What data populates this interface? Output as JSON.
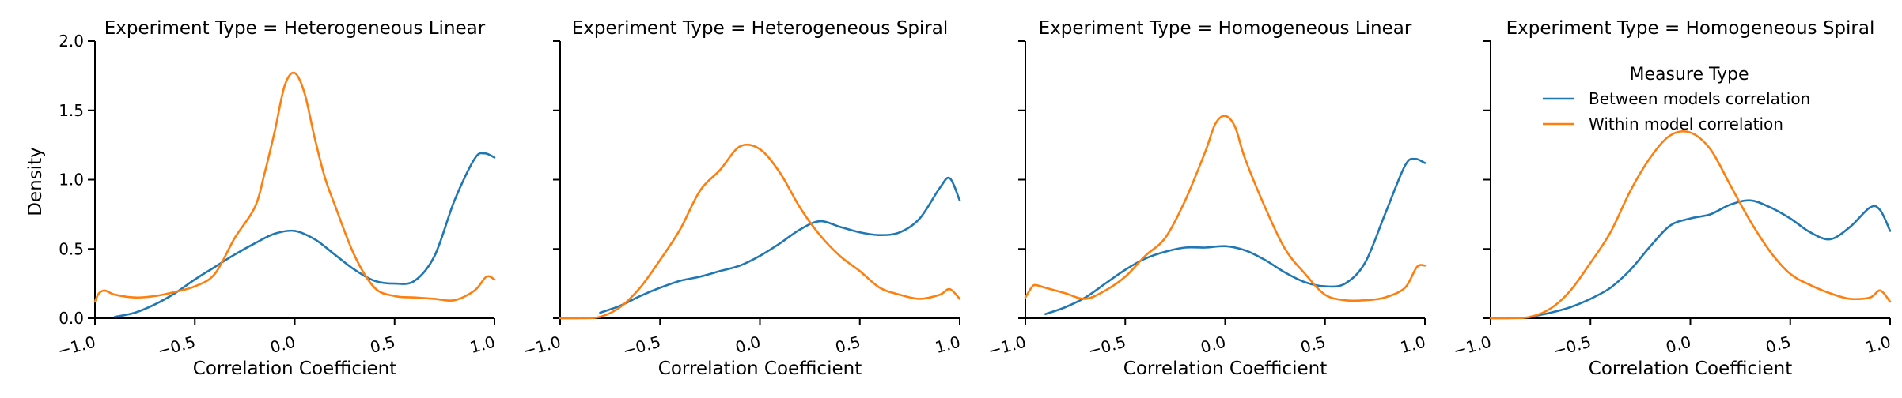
{
  "colors": {
    "between": "#1f77b4",
    "within": "#ff7f0e"
  },
  "legend": {
    "title": "Measure Type",
    "entries": [
      "Between models correlation",
      "Within model correlation"
    ]
  },
  "chart_data": {
    "type": "line",
    "xlabel": "Correlation Coefficient",
    "ylabel": "Density",
    "xlim": [
      -1.0,
      1.0
    ],
    "ylim": [
      0.0,
      2.0
    ],
    "x_ticks": [
      "−1.0",
      "−0.5",
      "0.0",
      "0.5",
      "1.0"
    ],
    "y_ticks": [
      "0.0",
      "0.5",
      "1.0",
      "1.5",
      "2.0"
    ],
    "legend_position": "top-right",
    "panels": [
      {
        "title": "Experiment Type = Heterogeneous Linear",
        "series": [
          {
            "name": "Between models correlation",
            "color_key": "between",
            "points": [
              [
                -0.9,
                0.01
              ],
              [
                -0.8,
                0.04
              ],
              [
                -0.7,
                0.1
              ],
              [
                -0.6,
                0.18
              ],
              [
                -0.5,
                0.28
              ],
              [
                -0.4,
                0.37
              ],
              [
                -0.3,
                0.46
              ],
              [
                -0.2,
                0.54
              ],
              [
                -0.1,
                0.61
              ],
              [
                0.0,
                0.63
              ],
              [
                0.1,
                0.57
              ],
              [
                0.2,
                0.46
              ],
              [
                0.3,
                0.35
              ],
              [
                0.4,
                0.27
              ],
              [
                0.5,
                0.25
              ],
              [
                0.6,
                0.27
              ],
              [
                0.7,
                0.45
              ],
              [
                0.8,
                0.85
              ],
              [
                0.9,
                1.15
              ],
              [
                0.95,
                1.19
              ],
              [
                1.0,
                1.16
              ]
            ]
          },
          {
            "name": "Within model correlation",
            "color_key": "within",
            "points": [
              [
                -1.0,
                0.12
              ],
              [
                -0.98,
                0.18
              ],
              [
                -0.95,
                0.2
              ],
              [
                -0.9,
                0.17
              ],
              [
                -0.8,
                0.15
              ],
              [
                -0.7,
                0.16
              ],
              [
                -0.6,
                0.19
              ],
              [
                -0.5,
                0.23
              ],
              [
                -0.4,
                0.32
              ],
              [
                -0.3,
                0.58
              ],
              [
                -0.2,
                0.8
              ],
              [
                -0.15,
                1.05
              ],
              [
                -0.1,
                1.35
              ],
              [
                -0.05,
                1.68
              ],
              [
                0.0,
                1.77
              ],
              [
                0.05,
                1.62
              ],
              [
                0.1,
                1.3
              ],
              [
                0.15,
                1.02
              ],
              [
                0.2,
                0.82
              ],
              [
                0.3,
                0.45
              ],
              [
                0.4,
                0.22
              ],
              [
                0.5,
                0.16
              ],
              [
                0.6,
                0.15
              ],
              [
                0.7,
                0.14
              ],
              [
                0.8,
                0.13
              ],
              [
                0.9,
                0.2
              ],
              [
                0.96,
                0.3
              ],
              [
                1.0,
                0.28
              ]
            ]
          }
        ]
      },
      {
        "title": "Experiment Type = Heterogeneous Spiral",
        "series": [
          {
            "name": "Between models correlation",
            "color_key": "between",
            "points": [
              [
                -0.8,
                0.04
              ],
              [
                -0.7,
                0.09
              ],
              [
                -0.6,
                0.16
              ],
              [
                -0.5,
                0.22
              ],
              [
                -0.4,
                0.27
              ],
              [
                -0.3,
                0.3
              ],
              [
                -0.2,
                0.34
              ],
              [
                -0.1,
                0.38
              ],
              [
                0.0,
                0.45
              ],
              [
                0.1,
                0.54
              ],
              [
                0.2,
                0.64
              ],
              [
                0.3,
                0.7
              ],
              [
                0.4,
                0.66
              ],
              [
                0.5,
                0.62
              ],
              [
                0.6,
                0.6
              ],
              [
                0.7,
                0.62
              ],
              [
                0.8,
                0.72
              ],
              [
                0.9,
                0.94
              ],
              [
                0.95,
                1.01
              ],
              [
                1.0,
                0.85
              ]
            ]
          },
          {
            "name": "Within model correlation",
            "color_key": "within",
            "points": [
              [
                -1.0,
                0.0
              ],
              [
                -0.9,
                0.0
              ],
              [
                -0.8,
                0.01
              ],
              [
                -0.7,
                0.08
              ],
              [
                -0.6,
                0.22
              ],
              [
                -0.5,
                0.42
              ],
              [
                -0.4,
                0.64
              ],
              [
                -0.3,
                0.92
              ],
              [
                -0.2,
                1.07
              ],
              [
                -0.1,
                1.24
              ],
              [
                0.0,
                1.22
              ],
              [
                0.1,
                1.05
              ],
              [
                0.2,
                0.8
              ],
              [
                0.3,
                0.6
              ],
              [
                0.4,
                0.45
              ],
              [
                0.5,
                0.34
              ],
              [
                0.6,
                0.22
              ],
              [
                0.7,
                0.17
              ],
              [
                0.8,
                0.14
              ],
              [
                0.9,
                0.17
              ],
              [
                0.95,
                0.21
              ],
              [
                1.0,
                0.14
              ]
            ]
          }
        ]
      },
      {
        "title": "Experiment Type = Homogeneous Linear",
        "series": [
          {
            "name": "Between models correlation",
            "color_key": "between",
            "points": [
              [
                -0.9,
                0.03
              ],
              [
                -0.8,
                0.08
              ],
              [
                -0.7,
                0.15
              ],
              [
                -0.6,
                0.25
              ],
              [
                -0.5,
                0.35
              ],
              [
                -0.4,
                0.43
              ],
              [
                -0.3,
                0.48
              ],
              [
                -0.2,
                0.51
              ],
              [
                -0.1,
                0.51
              ],
              [
                0.0,
                0.52
              ],
              [
                0.1,
                0.49
              ],
              [
                0.2,
                0.42
              ],
              [
                0.3,
                0.33
              ],
              [
                0.4,
                0.26
              ],
              [
                0.5,
                0.23
              ],
              [
                0.6,
                0.25
              ],
              [
                0.7,
                0.4
              ],
              [
                0.8,
                0.75
              ],
              [
                0.9,
                1.1
              ],
              [
                0.95,
                1.15
              ],
              [
                1.0,
                1.12
              ]
            ]
          },
          {
            "name": "Within model correlation",
            "color_key": "within",
            "points": [
              [
                -1.0,
                0.15
              ],
              [
                -0.97,
                0.22
              ],
              [
                -0.95,
                0.24
              ],
              [
                -0.9,
                0.22
              ],
              [
                -0.8,
                0.18
              ],
              [
                -0.7,
                0.14
              ],
              [
                -0.6,
                0.2
              ],
              [
                -0.5,
                0.3
              ],
              [
                -0.4,
                0.45
              ],
              [
                -0.3,
                0.58
              ],
              [
                -0.2,
                0.85
              ],
              [
                -0.1,
                1.2
              ],
              [
                -0.05,
                1.4
              ],
              [
                0.0,
                1.46
              ],
              [
                0.05,
                1.38
              ],
              [
                0.1,
                1.15
              ],
              [
                0.2,
                0.8
              ],
              [
                0.3,
                0.5
              ],
              [
                0.4,
                0.32
              ],
              [
                0.5,
                0.17
              ],
              [
                0.6,
                0.13
              ],
              [
                0.7,
                0.13
              ],
              [
                0.8,
                0.15
              ],
              [
                0.9,
                0.22
              ],
              [
                0.96,
                0.37
              ],
              [
                1.0,
                0.38
              ]
            ]
          }
        ]
      },
      {
        "title": "Experiment Type = Homogeneous Spiral",
        "series": [
          {
            "name": "Between models correlation",
            "color_key": "between",
            "points": [
              [
                -0.8,
                0.01
              ],
              [
                -0.7,
                0.04
              ],
              [
                -0.6,
                0.08
              ],
              [
                -0.5,
                0.14
              ],
              [
                -0.4,
                0.22
              ],
              [
                -0.3,
                0.35
              ],
              [
                -0.2,
                0.52
              ],
              [
                -0.1,
                0.67
              ],
              [
                0.0,
                0.72
              ],
              [
                0.1,
                0.75
              ],
              [
                0.2,
                0.82
              ],
              [
                0.3,
                0.85
              ],
              [
                0.4,
                0.8
              ],
              [
                0.5,
                0.72
              ],
              [
                0.6,
                0.62
              ],
              [
                0.7,
                0.57
              ],
              [
                0.8,
                0.66
              ],
              [
                0.9,
                0.8
              ],
              [
                0.95,
                0.78
              ],
              [
                1.0,
                0.63
              ]
            ]
          },
          {
            "name": "Within model correlation",
            "color_key": "within",
            "points": [
              [
                -1.0,
                0.0
              ],
              [
                -0.9,
                0.0
              ],
              [
                -0.8,
                0.01
              ],
              [
                -0.7,
                0.07
              ],
              [
                -0.6,
                0.2
              ],
              [
                -0.5,
                0.4
              ],
              [
                -0.4,
                0.62
              ],
              [
                -0.3,
                0.92
              ],
              [
                -0.2,
                1.16
              ],
              [
                -0.1,
                1.32
              ],
              [
                0.0,
                1.34
              ],
              [
                0.1,
                1.22
              ],
              [
                0.2,
                0.96
              ],
              [
                0.3,
                0.7
              ],
              [
                0.4,
                0.48
              ],
              [
                0.5,
                0.32
              ],
              [
                0.6,
                0.24
              ],
              [
                0.7,
                0.18
              ],
              [
                0.8,
                0.14
              ],
              [
                0.9,
                0.15
              ],
              [
                0.95,
                0.2
              ],
              [
                1.0,
                0.12
              ]
            ]
          }
        ]
      }
    ]
  }
}
